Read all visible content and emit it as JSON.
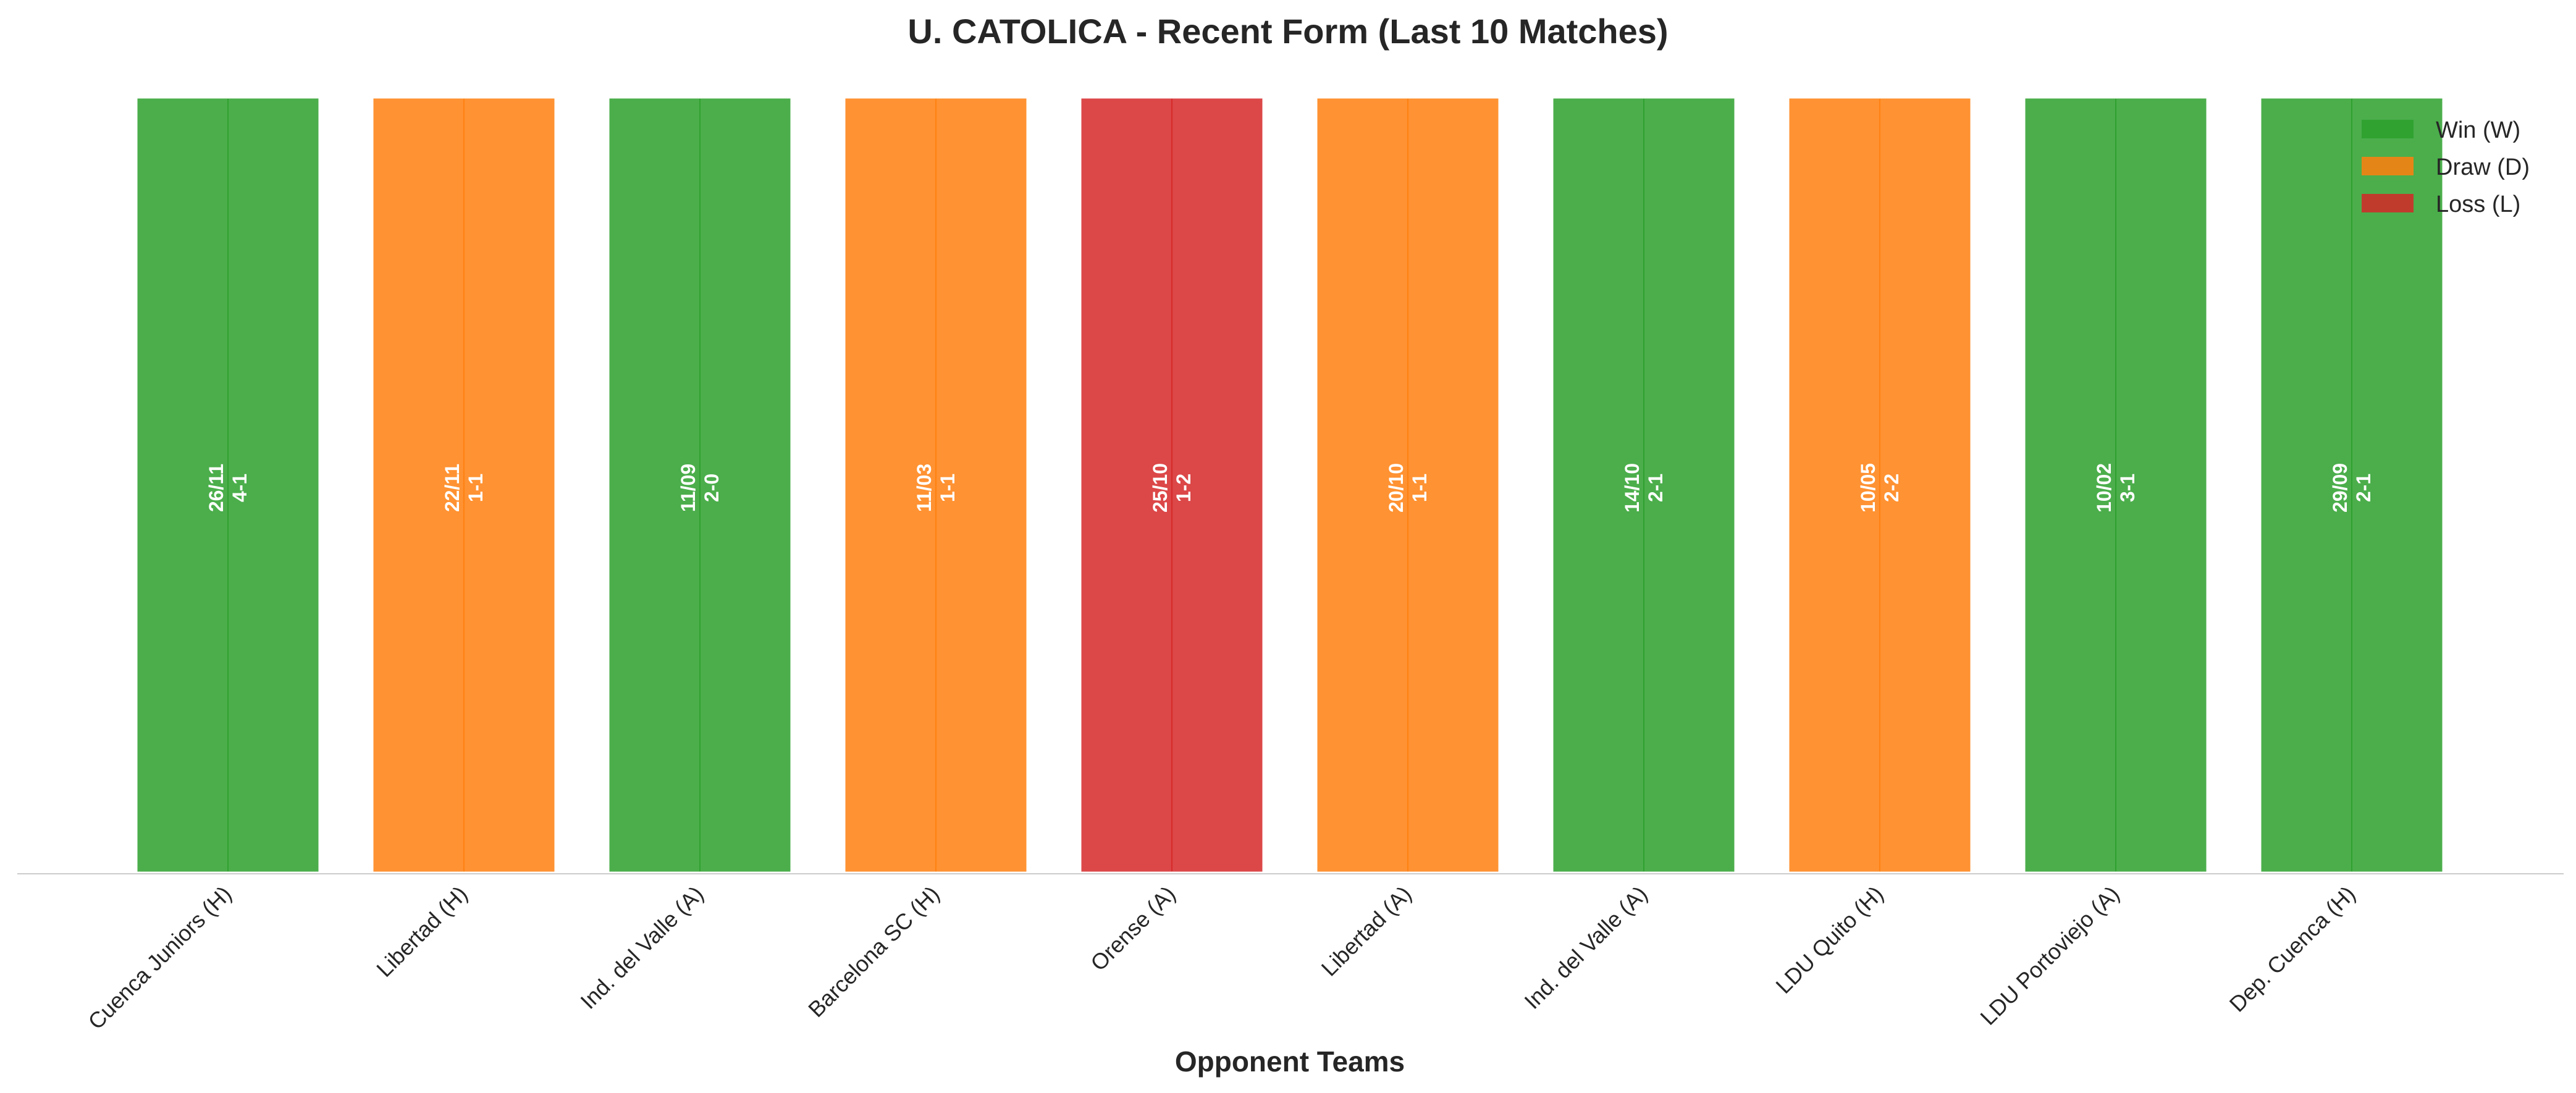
{
  "chart_data": {
    "type": "bar",
    "title": "U. CATOLICA - Recent Form (Last 10 Matches)",
    "xlabel": "Opponent Teams",
    "ylabel": "",
    "grid": false,
    "legend_position": "top-right",
    "categories": [
      "Cuenca Juniors (H)",
      "Libertad (H)",
      "Ind. del Valle (A)",
      "Barcelona SC (H)",
      "Orense (A)",
      "Libertad (A)",
      "Ind. del Valle (A)",
      "LDU Quito (H)",
      "LDU Portoviejo (A)",
      "Dep. Cuenca (H)"
    ],
    "values": [
      1,
      1,
      1,
      1,
      1,
      1,
      1,
      1,
      1,
      1
    ],
    "results": [
      "W",
      "D",
      "W",
      "D",
      "L",
      "D",
      "W",
      "D",
      "W",
      "W"
    ],
    "dates": [
      "26/11",
      "22/11",
      "11/09",
      "11/03",
      "25/10",
      "20/10",
      "14/10",
      "10/05",
      "10/02",
      "29/09"
    ],
    "scores": [
      "4-1",
      "1-1",
      "2-0",
      "1-1",
      "1-2",
      "1-1",
      "2-1",
      "2-2",
      "3-1",
      "2-1"
    ],
    "legend": [
      {
        "key": "W",
        "label": "Win (W)",
        "color": "#2ca02c"
      },
      {
        "key": "D",
        "label": "Draw (D)",
        "color": "#ff7f0e"
      },
      {
        "key": "L",
        "label": "Loss (L)",
        "color": "#d62728"
      }
    ],
    "colors": {
      "W": "#2ca02c",
      "D": "#ff7f0e",
      "L": "#d62728"
    }
  }
}
